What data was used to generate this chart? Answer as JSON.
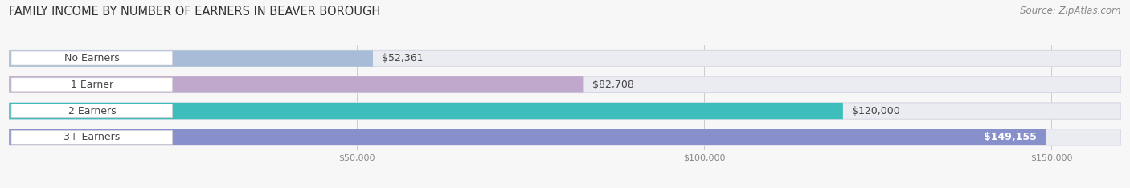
{
  "title": "FAMILY INCOME BY NUMBER OF EARNERS IN BEAVER BOROUGH",
  "source": "Source: ZipAtlas.com",
  "categories": [
    "No Earners",
    "1 Earner",
    "2 Earners",
    "3+ Earners"
  ],
  "values": [
    52361,
    82708,
    120000,
    149155
  ],
  "value_labels": [
    "$52,361",
    "$82,708",
    "$120,000",
    "$149,155"
  ],
  "bar_colors": [
    "#a8bcd8",
    "#c0a8cc",
    "#3dbdbc",
    "#8890cc"
  ],
  "bar_bg_color": "#ebebf2",
  "bar_border_color": "#d8d8e4",
  "white_label_bg": "#ffffff",
  "xlim": [
    0,
    160000
  ],
  "xticks": [
    50000,
    100000,
    150000
  ],
  "xtick_labels": [
    "$50,000",
    "$100,000",
    "$150,000"
  ],
  "title_fontsize": 10.5,
  "source_fontsize": 8.5,
  "label_fontsize": 9,
  "value_fontsize": 9,
  "bar_height": 0.62,
  "background_color": "#f7f7f7",
  "value_inside_threshold": 0.88
}
